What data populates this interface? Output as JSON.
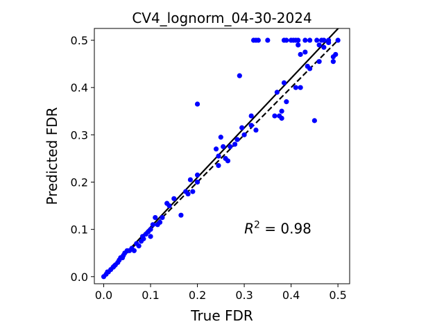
{
  "chart_data": {
    "type": "scatter",
    "title": "CV4_lognorm_04-30-2024",
    "xlabel": "True FDR",
    "ylabel": "Predicted FDR",
    "xlim": [
      -0.02,
      0.525
    ],
    "ylim": [
      -0.015,
      0.525
    ],
    "xticks": [
      0.0,
      0.1,
      0.2,
      0.3,
      0.4,
      0.5
    ],
    "xtick_labels": [
      "0.0",
      "0.1",
      "0.2",
      "0.3",
      "0.4",
      "0.5"
    ],
    "yticks": [
      0.0,
      0.1,
      0.2,
      0.3,
      0.4,
      0.5
    ],
    "ytick_labels": [
      "0.0",
      "0.1",
      "0.2",
      "0.3",
      "0.4",
      "0.5"
    ],
    "grid": false,
    "annotation": {
      "prefix": "R",
      "superscript": "2",
      "text": " = 0.98",
      "x": 0.3,
      "y": 0.1
    },
    "colors": {
      "points": "#0000ff",
      "lines": "#000000"
    },
    "lines": [
      {
        "style": "solid",
        "x": [
          0.0,
          0.51
        ],
        "y": [
          0.0,
          0.535
        ]
      },
      {
        "style": "dashed",
        "x": [
          0.0,
          0.5
        ],
        "y": [
          0.0,
          0.5
        ]
      }
    ],
    "points": {
      "x": [
        0.0,
        0.005,
        0.008,
        0.01,
        0.015,
        0.02,
        0.022,
        0.025,
        0.03,
        0.033,
        0.036,
        0.04,
        0.042,
        0.045,
        0.05,
        0.055,
        0.06,
        0.065,
        0.07,
        0.075,
        0.08,
        0.083,
        0.085,
        0.09,
        0.095,
        0.1,
        0.1,
        0.105,
        0.11,
        0.115,
        0.12,
        0.125,
        0.135,
        0.14,
        0.15,
        0.165,
        0.175,
        0.18,
        0.185,
        0.19,
        0.2,
        0.2,
        0.2,
        0.24,
        0.245,
        0.245,
        0.25,
        0.255,
        0.26,
        0.265,
        0.27,
        0.28,
        0.285,
        0.29,
        0.295,
        0.3,
        0.315,
        0.315,
        0.32,
        0.325,
        0.325,
        0.33,
        0.35,
        0.365,
        0.37,
        0.375,
        0.38,
        0.38,
        0.385,
        0.385,
        0.39,
        0.39,
        0.4,
        0.405,
        0.41,
        0.41,
        0.415,
        0.415,
        0.42,
        0.42,
        0.43,
        0.43,
        0.435,
        0.44,
        0.44,
        0.45,
        0.455,
        0.46,
        0.46,
        0.465,
        0.47,
        0.47,
        0.48,
        0.48,
        0.49,
        0.49,
        0.495,
        0.5
      ],
      "y": [
        0.0,
        0.005,
        0.01,
        0.01,
        0.015,
        0.02,
        0.022,
        0.025,
        0.03,
        0.035,
        0.04,
        0.04,
        0.045,
        0.05,
        0.055,
        0.055,
        0.06,
        0.055,
        0.07,
        0.065,
        0.075,
        0.085,
        0.08,
        0.09,
        0.095,
        0.085,
        0.1,
        0.11,
        0.125,
        0.11,
        0.115,
        0.125,
        0.155,
        0.15,
        0.165,
        0.13,
        0.18,
        0.175,
        0.205,
        0.18,
        0.2,
        0.215,
        0.365,
        0.27,
        0.255,
        0.235,
        0.295,
        0.275,
        0.25,
        0.245,
        0.275,
        0.28,
        0.29,
        0.425,
        0.315,
        0.3,
        0.32,
        0.34,
        0.5,
        0.5,
        0.31,
        0.5,
        0.5,
        0.34,
        0.39,
        0.34,
        0.35,
        0.335,
        0.41,
        0.5,
        0.37,
        0.5,
        0.5,
        0.5,
        0.5,
        0.4,
        0.5,
        0.49,
        0.4,
        0.47,
        0.5,
        0.475,
        0.445,
        0.5,
        0.44,
        0.33,
        0.5,
        0.49,
        0.455,
        0.5,
        0.5,
        0.485,
        0.5,
        0.495,
        0.455,
        0.465,
        0.47,
        0.5
      ]
    }
  }
}
